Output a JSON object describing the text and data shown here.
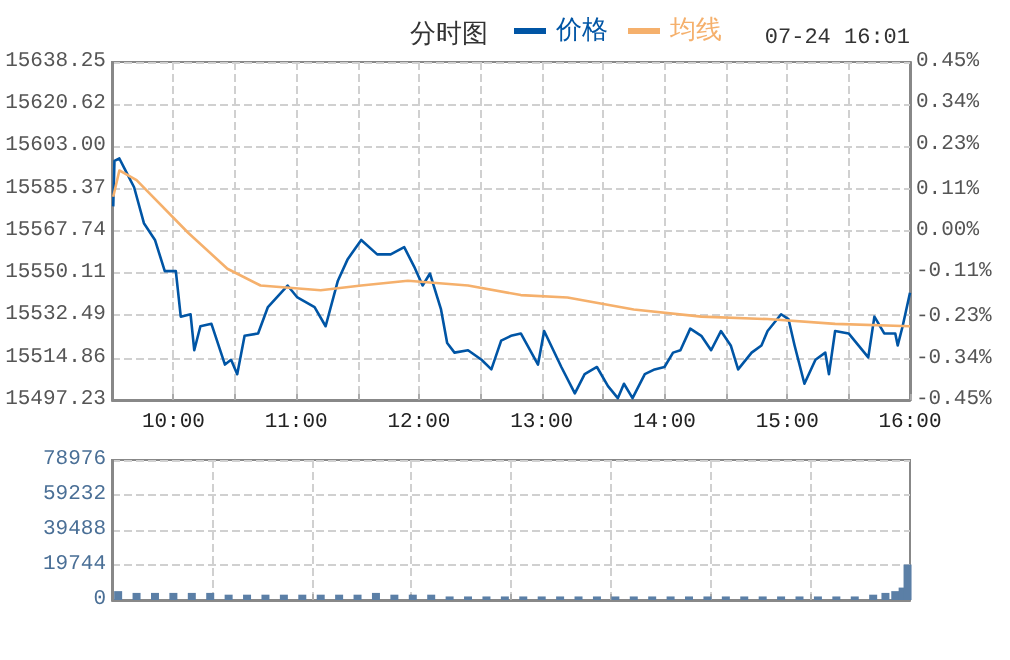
{
  "chart_data": [
    {
      "type": "line",
      "title": "分时图",
      "annotations": [
        "07-24 16:01"
      ],
      "legend": "top",
      "grid": true,
      "marker": "none",
      "line_style": "solid",
      "xlim": [
        9.5,
        16
      ],
      "xticks": [
        {
          "value": 10,
          "label": "10:00"
        },
        {
          "value": 10.5,
          "label": null
        },
        {
          "value": 11,
          "label": "11:00"
        },
        {
          "value": 11.5,
          "label": null
        },
        {
          "value": 12,
          "label": "12:00"
        },
        {
          "value": 12.5,
          "label": null
        },
        {
          "value": 13,
          "label": "13:00"
        },
        {
          "value": 13.5,
          "label": null
        },
        {
          "value": 14,
          "label": "14:00"
        },
        {
          "value": 14.5,
          "label": null
        },
        {
          "value": 15,
          "label": "15:00"
        },
        {
          "value": 15.5,
          "label": null
        },
        {
          "value": 16,
          "label": "16:00"
        }
      ],
      "ylim": [
        15497.23,
        15638.25
      ],
      "yticks": [
        15497.23,
        15514.86,
        15532.49,
        15550.11,
        15567.74,
        15585.37,
        {
          "value": 15603,
          "label": "15603.00"
        },
        15620.62,
        15638.25
      ],
      "y2lim": [
        -0.45,
        0.45
      ],
      "y2ticks": [
        {
          "value": -0.45,
          "label": "-0.45%"
        },
        {
          "value": -0.34,
          "label": "-0.34%"
        },
        {
          "value": -0.23,
          "label": "-0.23%"
        },
        {
          "value": -0.11,
          "label": "-0.11%"
        },
        {
          "value": 0,
          "label": "0.00%"
        },
        {
          "value": 0.11,
          "label": "0.11%"
        },
        {
          "value": 0.23,
          "label": "0.23%"
        },
        {
          "value": 0.34,
          "label": "0.34%"
        },
        {
          "value": 0.45,
          "label": "0.45%"
        }
      ],
      "series": [
        {
          "name": "价格",
          "color": "#0055a5",
          "x": [
            9.51,
            9.52,
            9.56,
            9.6,
            9.68,
            9.76,
            9.85,
            9.93,
            10.02,
            10.06,
            10.14,
            10.17,
            10.22,
            10.31,
            10.42,
            10.47,
            10.52,
            10.58,
            10.69,
            10.77,
            10.93,
            11.01,
            11.15,
            11.24,
            11.34,
            11.42,
            11.53,
            11.66,
            11.77,
            11.88,
            11.96,
            12.03,
            12.09,
            12.18,
            12.23,
            12.29,
            12.4,
            12.51,
            12.59,
            12.67,
            12.75,
            12.83,
            12.97,
            13.02,
            13.16,
            13.27,
            13.35,
            13.45,
            13.54,
            13.62,
            13.67,
            13.74,
            13.84,
            13.92,
            14,
            14.07,
            14.13,
            14.21,
            14.3,
            14.38,
            14.46,
            14.54,
            14.6,
            14.71,
            14.79,
            14.84,
            14.95,
            15.01,
            15.06,
            15.14,
            15.23,
            15.31,
            15.34,
            15.39,
            15.5,
            15.58,
            15.66,
            15.71,
            15.79,
            15.88,
            15.9,
            15.94,
            16
          ],
          "values": [
            15578,
            15597,
            15598,
            15594,
            15586,
            15571,
            15564,
            15551,
            15551,
            15532,
            15533,
            15518,
            15528,
            15529,
            15512,
            15514,
            15508,
            15524,
            15525,
            15536,
            15545,
            15540,
            15536,
            15528,
            15547,
            15556,
            15564,
            15558,
            15558,
            15561,
            15553,
            15545,
            15550,
            15535,
            15521,
            15517,
            15518,
            15514,
            15510,
            15522,
            15524,
            15525,
            15512,
            15526,
            15511,
            15500,
            15508,
            15511,
            15503,
            15498,
            15504,
            15498,
            15508,
            15510,
            15511,
            15517,
            15518,
            15527,
            15524,
            15518,
            15526,
            15520,
            15510,
            15517,
            15520,
            15526,
            15533,
            15531,
            15520,
            15504,
            15514,
            15517,
            15508,
            15526,
            15525,
            15520,
            15515,
            15532,
            15525,
            15525,
            15520,
            15528,
            15542
          ]
        },
        {
          "name": "均线",
          "color": "#f5b06c",
          "x": [
            9.51,
            9.56,
            9.7,
            10.12,
            10.44,
            10.71,
            11.2,
            11.53,
            11.91,
            12.4,
            12.83,
            13.21,
            13.75,
            14.3,
            14.84,
            15.39,
            16
          ],
          "values": [
            15582,
            15593,
            15589,
            15567,
            15552,
            15545,
            15543,
            15545,
            15547,
            15545,
            15541,
            15540,
            15535,
            15532,
            15531,
            15529,
            15528
          ]
        }
      ]
    },
    {
      "type": "bar",
      "grid": true,
      "tick_labels": "y",
      "xlim": [
        9.5,
        16
      ],
      "xticks": [
        {
          "value": 10.3125,
          "label": null
        },
        {
          "value": 11.125,
          "label": null
        },
        {
          "value": 11.9375,
          "label": null
        },
        {
          "value": 12.75,
          "label": null
        },
        {
          "value": 13.5625,
          "label": null
        },
        {
          "value": 14.375,
          "label": null
        },
        {
          "value": 15.1875,
          "label": null
        }
      ],
      "ylim": [
        0,
        78976
      ],
      "yticks": [
        0,
        19744,
        39488,
        59232,
        78976
      ],
      "series": [
        {
          "color": "#5b7fa6",
          "x": [
            9.55,
            9.7,
            9.85,
            10,
            10.15,
            10.3,
            10.45,
            10.6,
            10.75,
            10.9,
            11.05,
            11.2,
            11.35,
            11.5,
            11.65,
            11.8,
            11.95,
            12.1,
            12.25,
            12.4,
            12.55,
            12.7,
            12.85,
            13,
            13.15,
            13.3,
            13.45,
            13.6,
            13.75,
            13.9,
            14.05,
            14.2,
            14.35,
            14.5,
            14.65,
            14.8,
            14.95,
            15.1,
            15.25,
            15.4,
            15.55,
            15.7,
            15.8,
            15.88,
            15.94,
            15.98
          ],
          "values": [
            5000,
            4000,
            4000,
            4000,
            4000,
            4000,
            3000,
            3000,
            3000,
            3000,
            3000,
            3000,
            3000,
            3000,
            4000,
            3000,
            3000,
            3000,
            2000,
            2000,
            2000,
            2000,
            2000,
            2000,
            2000,
            2000,
            2000,
            2000,
            2000,
            2000,
            2000,
            2000,
            2000,
            2000,
            2000,
            2000,
            2000,
            2000,
            2000,
            2000,
            2000,
            3000,
            4000,
            5000,
            7000,
            20000
          ]
        }
      ]
    }
  ]
}
